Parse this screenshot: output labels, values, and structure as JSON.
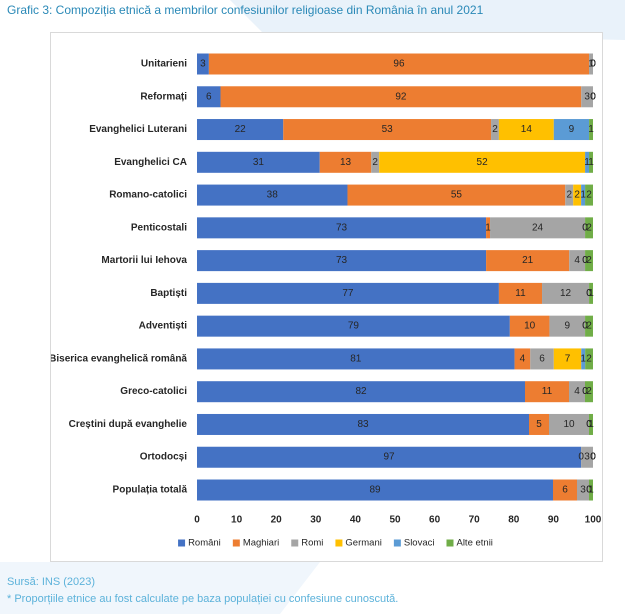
{
  "chart_data": {
    "type": "bar",
    "orientation": "horizontal",
    "stacked": true,
    "title": "Grafic 3: Compoziția etnică a membrilor confesiunilor religioase din România în anul 2021",
    "categories": [
      "Unitarieni",
      "Reformați",
      "Evanghelici Luterani",
      "Evanghelici CA",
      "Romano-catolici",
      "Penticostali",
      "Martorii lui Iehova",
      "Baptiști",
      "Adventiști",
      "Biserica evanghelică română",
      "Greco-catolici",
      "Creștini după evanghelie",
      "Ortodocși",
      "Populația totală"
    ],
    "series": [
      {
        "name": "Români",
        "color": "#4472C4",
        "values": [
          3,
          6,
          22,
          31,
          38,
          73,
          73,
          77,
          79,
          81,
          82,
          83,
          97,
          89
        ]
      },
      {
        "name": "Maghiari",
        "color": "#ED7D31",
        "values": [
          96,
          92,
          53,
          13,
          55,
          1,
          21,
          11,
          10,
          4,
          11,
          5,
          0,
          6
        ]
      },
      {
        "name": "Romi",
        "color": "#A5A5A5",
        "values": [
          1,
          3,
          2,
          2,
          2,
          24,
          4,
          12,
          9,
          6,
          4,
          10,
          3,
          3
        ]
      },
      {
        "name": "Germani",
        "color": "#FFC000",
        "values": [
          0,
          0,
          14,
          52,
          2,
          0,
          0,
          0,
          0,
          7,
          0,
          0,
          0,
          0
        ]
      },
      {
        "name": "Slovaci",
        "color": "#5B9BD5",
        "values": [
          0,
          0,
          9,
          1,
          1,
          0,
          0,
          0,
          0,
          1,
          0,
          0,
          0,
          0
        ]
      },
      {
        "name": "Alte etnii",
        "color": "#70AD47",
        "values": [
          0,
          0,
          1,
          1,
          2,
          2,
          2,
          1,
          2,
          2,
          2,
          1,
          0,
          1
        ]
      }
    ],
    "xlim": [
      0,
      100
    ],
    "xticks": [
      0,
      10,
      20,
      30,
      40,
      50,
      60,
      70,
      80,
      90,
      100
    ],
    "grid": false,
    "legend_position": "bottom"
  },
  "source": "Sursă: INS (2023)",
  "note": "* Proporțiile etnice au fost calculate pe baza populației cu confesiune cunoscută.",
  "theme": {
    "title_color": "#2a89b7",
    "source_color": "#5cb2da",
    "label_color": "#262626",
    "frame_border_color": "#d9d9d9"
  }
}
